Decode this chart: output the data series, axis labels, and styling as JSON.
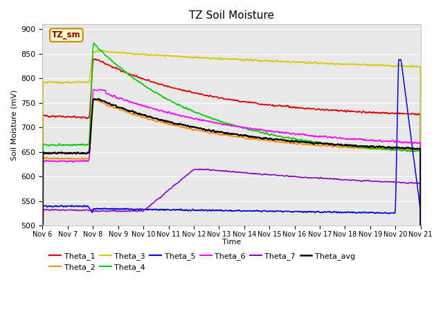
{
  "title": "TZ Soil Moisture",
  "xlabel": "Time",
  "ylabel": "Soil Moisture (mV)",
  "ylim": [
    500,
    910
  ],
  "yticks": [
    500,
    550,
    600,
    650,
    700,
    750,
    800,
    850,
    900
  ],
  "label_box_text": "TZ_sm",
  "series_colors": {
    "Theta_1": "#dd0000",
    "Theta_2": "#ff8800",
    "Theta_3": "#cccc00",
    "Theta_4": "#00cc00",
    "Theta_5": "#0000dd",
    "Theta_6": "#ff00ff",
    "Theta_7": "#8800cc",
    "Theta_avg": "#000000"
  },
  "bg_color": "#e8e8e8",
  "fig_bg": "#ffffff",
  "legend_order": [
    "Theta_1",
    "Theta_2",
    "Theta_3",
    "Theta_4",
    "Theta_5",
    "Theta_6",
    "Theta_7",
    "Theta_avg"
  ]
}
